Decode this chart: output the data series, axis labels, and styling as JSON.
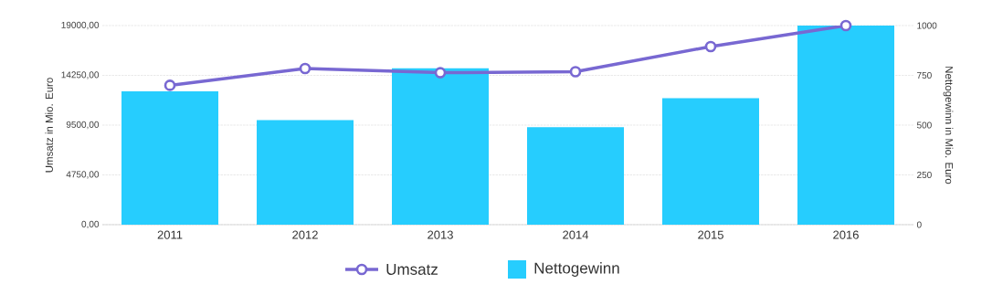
{
  "chart_data": {
    "type": "bar",
    "categories": [
      "2011",
      "2012",
      "2013",
      "2014",
      "2015",
      "2016"
    ],
    "series": [
      {
        "name": "Umsatz",
        "type": "line",
        "axis": "y",
        "color": "#7868d2",
        "marker": "circle",
        "values": [
          13300,
          14900,
          14500,
          14600,
          17000,
          19000
        ]
      },
      {
        "name": "Nettogewinn",
        "axis": "y2",
        "color": "#26cdfe",
        "values": [
          670,
          525,
          785,
          490,
          635,
          1000
        ]
      }
    ],
    "ylabel": "Umsatz in Mio. Euro",
    "y2label": "Nettogewinn in Mio. Euro",
    "ylim": [
      0,
      19000
    ],
    "yticks": [
      {
        "value": 0,
        "label": "0,00"
      },
      {
        "value": 4750,
        "label": "4750,00"
      },
      {
        "value": 9500,
        "label": "9500,00"
      },
      {
        "value": 14250,
        "label": "14250,00"
      },
      {
        "value": 19000,
        "label": "19000,00"
      }
    ],
    "y2lim": [
      0,
      1000
    ],
    "y2ticks": [
      0,
      250,
      500,
      750,
      1000
    ],
    "grid": "y",
    "legend": "bottom"
  }
}
